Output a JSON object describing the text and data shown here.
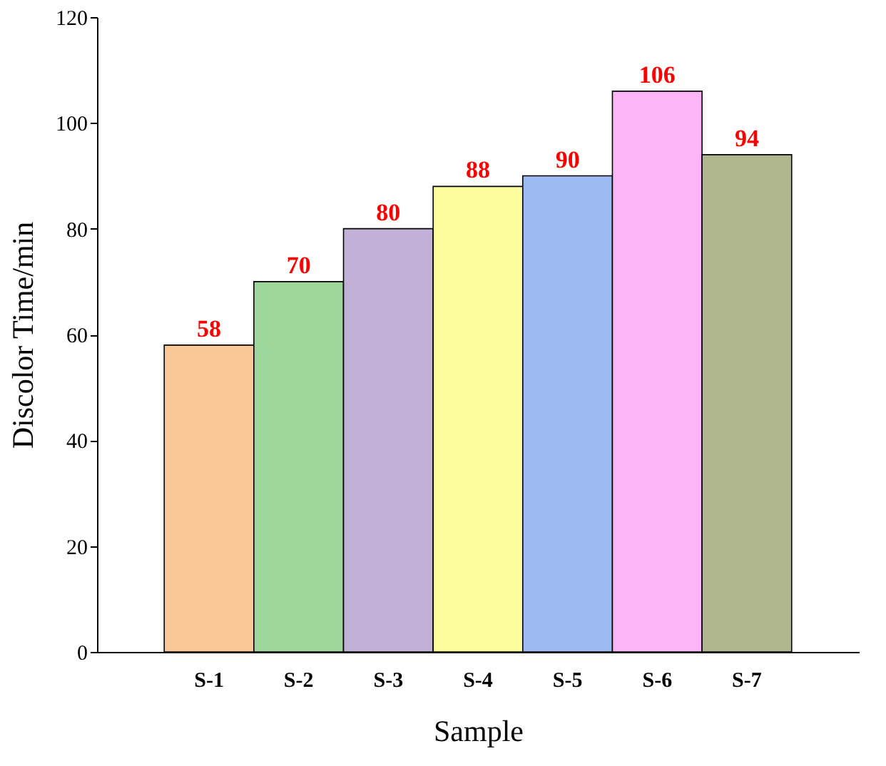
{
  "chart_data": {
    "type": "bar",
    "xlabel": "Sample",
    "ylabel": "Discolor Time/min",
    "categories": [
      "S-1",
      "S-2",
      "S-3",
      "S-4",
      "S-5",
      "S-6",
      "S-7"
    ],
    "values": [
      58,
      70,
      80,
      88,
      90,
      106,
      94
    ],
    "colors": [
      "#f9c896",
      "#9ed79b",
      "#c2b1d6",
      "#fdfd9e",
      "#9dbaf3",
      "#fcb5f6",
      "#b0b68e"
    ],
    "ylim": [
      0,
      120
    ],
    "yticks": [
      0,
      20,
      40,
      60,
      80,
      100,
      120
    ],
    "grid": false,
    "legend": false,
    "data_labels": true
  }
}
